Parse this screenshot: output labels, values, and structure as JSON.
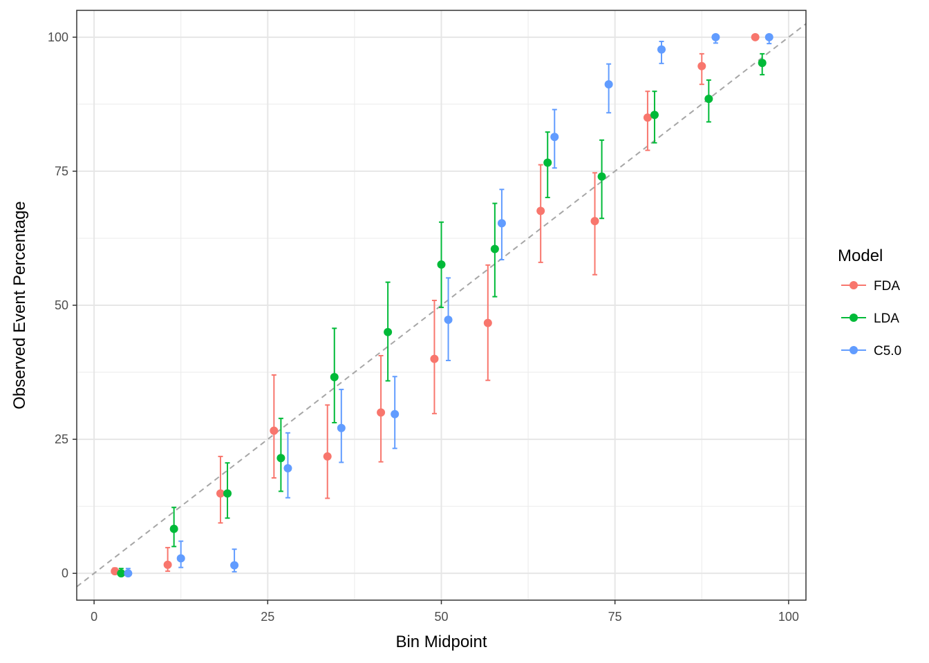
{
  "chart_data": {
    "type": "scatter",
    "subtype": "calibration-plot-with-error-bars",
    "xlabel": "Bin Midpoint",
    "ylabel": "Observed Event Percentage",
    "xlim": [
      -2.5,
      102.5
    ],
    "ylim": [
      -5,
      105
    ],
    "x_ticks": [
      0,
      25,
      50,
      75,
      100
    ],
    "x_tick_labels": [
      "0",
      "25",
      "50",
      "75",
      "100"
    ],
    "y_ticks": [
      0,
      25,
      50,
      75,
      100
    ],
    "y_tick_labels": [
      "0",
      "25",
      "50",
      "75",
      "100"
    ],
    "grid": true,
    "reference_line": {
      "slope": 1,
      "intercept": 0,
      "style": "dashed",
      "color": "#a6a6a6"
    },
    "legend": {
      "title": "Model",
      "position": "right"
    },
    "series": [
      {
        "name": "FDA",
        "color": "#F8766D",
        "points": [
          {
            "x": 3.0,
            "y": 0.4,
            "lo": 0.0,
            "hi": 1.0
          },
          {
            "x": 10.6,
            "y": 1.6,
            "lo": 0.4,
            "hi": 4.8
          },
          {
            "x": 18.2,
            "y": 14.9,
            "lo": 9.4,
            "hi": 21.8
          },
          {
            "x": 25.9,
            "y": 26.6,
            "lo": 17.8,
            "hi": 37.0
          },
          {
            "x": 33.6,
            "y": 21.8,
            "lo": 14.0,
            "hi": 31.4
          },
          {
            "x": 41.3,
            "y": 30.0,
            "lo": 20.8,
            "hi": 40.6
          },
          {
            "x": 49.0,
            "y": 40.0,
            "lo": 29.8,
            "hi": 50.9
          },
          {
            "x": 56.7,
            "y": 46.7,
            "lo": 36.0,
            "hi": 57.5
          },
          {
            "x": 64.3,
            "y": 67.6,
            "lo": 58.0,
            "hi": 76.2
          },
          {
            "x": 72.1,
            "y": 65.7,
            "lo": 55.7,
            "hi": 74.7
          },
          {
            "x": 79.7,
            "y": 85.0,
            "lo": 78.9,
            "hi": 89.9
          },
          {
            "x": 87.5,
            "y": 94.6,
            "lo": 91.2,
            "hi": 96.9
          },
          {
            "x": 95.2,
            "y": 100.0,
            "lo": 100.0,
            "hi": 100.0
          }
        ]
      },
      {
        "name": "LDA",
        "color": "#00BA38",
        "points": [
          {
            "x": 3.9,
            "y": 0.0,
            "lo": 0.0,
            "hi": 0.9
          },
          {
            "x": 11.5,
            "y": 8.3,
            "lo": 5.0,
            "hi": 12.3
          },
          {
            "x": 19.2,
            "y": 14.9,
            "lo": 10.3,
            "hi": 20.6
          },
          {
            "x": 26.9,
            "y": 21.5,
            "lo": 15.3,
            "hi": 28.9
          },
          {
            "x": 34.6,
            "y": 36.6,
            "lo": 28.1,
            "hi": 45.7
          },
          {
            "x": 42.3,
            "y": 45.0,
            "lo": 35.9,
            "hi": 54.3
          },
          {
            "x": 50.0,
            "y": 57.6,
            "lo": 49.6,
            "hi": 65.5
          },
          {
            "x": 57.7,
            "y": 60.5,
            "lo": 51.6,
            "hi": 69.0
          },
          {
            "x": 65.3,
            "y": 76.6,
            "lo": 70.1,
            "hi": 82.3
          },
          {
            "x": 73.1,
            "y": 74.0,
            "lo": 66.2,
            "hi": 80.8
          },
          {
            "x": 80.7,
            "y": 85.5,
            "lo": 80.3,
            "hi": 89.9
          },
          {
            "x": 88.5,
            "y": 88.5,
            "lo": 84.2,
            "hi": 92.0
          },
          {
            "x": 96.2,
            "y": 95.2,
            "lo": 93.0,
            "hi": 96.9
          }
        ]
      },
      {
        "name": "C5.0",
        "color": "#619CFF",
        "points": [
          {
            "x": 4.9,
            "y": 0.0,
            "lo": 0.0,
            "hi": 0.9
          },
          {
            "x": 12.5,
            "y": 2.8,
            "lo": 1.1,
            "hi": 6.0
          },
          {
            "x": 20.2,
            "y": 1.5,
            "lo": 0.3,
            "hi": 4.5
          },
          {
            "x": 27.9,
            "y": 19.6,
            "lo": 14.1,
            "hi": 26.2
          },
          {
            "x": 35.6,
            "y": 27.1,
            "lo": 20.7,
            "hi": 34.3
          },
          {
            "x": 43.3,
            "y": 29.7,
            "lo": 23.3,
            "hi": 36.7
          },
          {
            "x": 51.0,
            "y": 47.3,
            "lo": 39.7,
            "hi": 55.1
          },
          {
            "x": 58.7,
            "y": 65.3,
            "lo": 58.5,
            "hi": 71.6
          },
          {
            "x": 66.3,
            "y": 81.4,
            "lo": 75.6,
            "hi": 86.5
          },
          {
            "x": 74.1,
            "y": 91.2,
            "lo": 85.9,
            "hi": 95.0
          },
          {
            "x": 81.7,
            "y": 97.7,
            "lo": 95.1,
            "hi": 99.2
          },
          {
            "x": 89.5,
            "y": 100.0,
            "lo": 98.9,
            "hi": 100.0
          },
          {
            "x": 97.2,
            "y": 100.0,
            "lo": 98.8,
            "hi": 100.0
          }
        ]
      }
    ]
  }
}
